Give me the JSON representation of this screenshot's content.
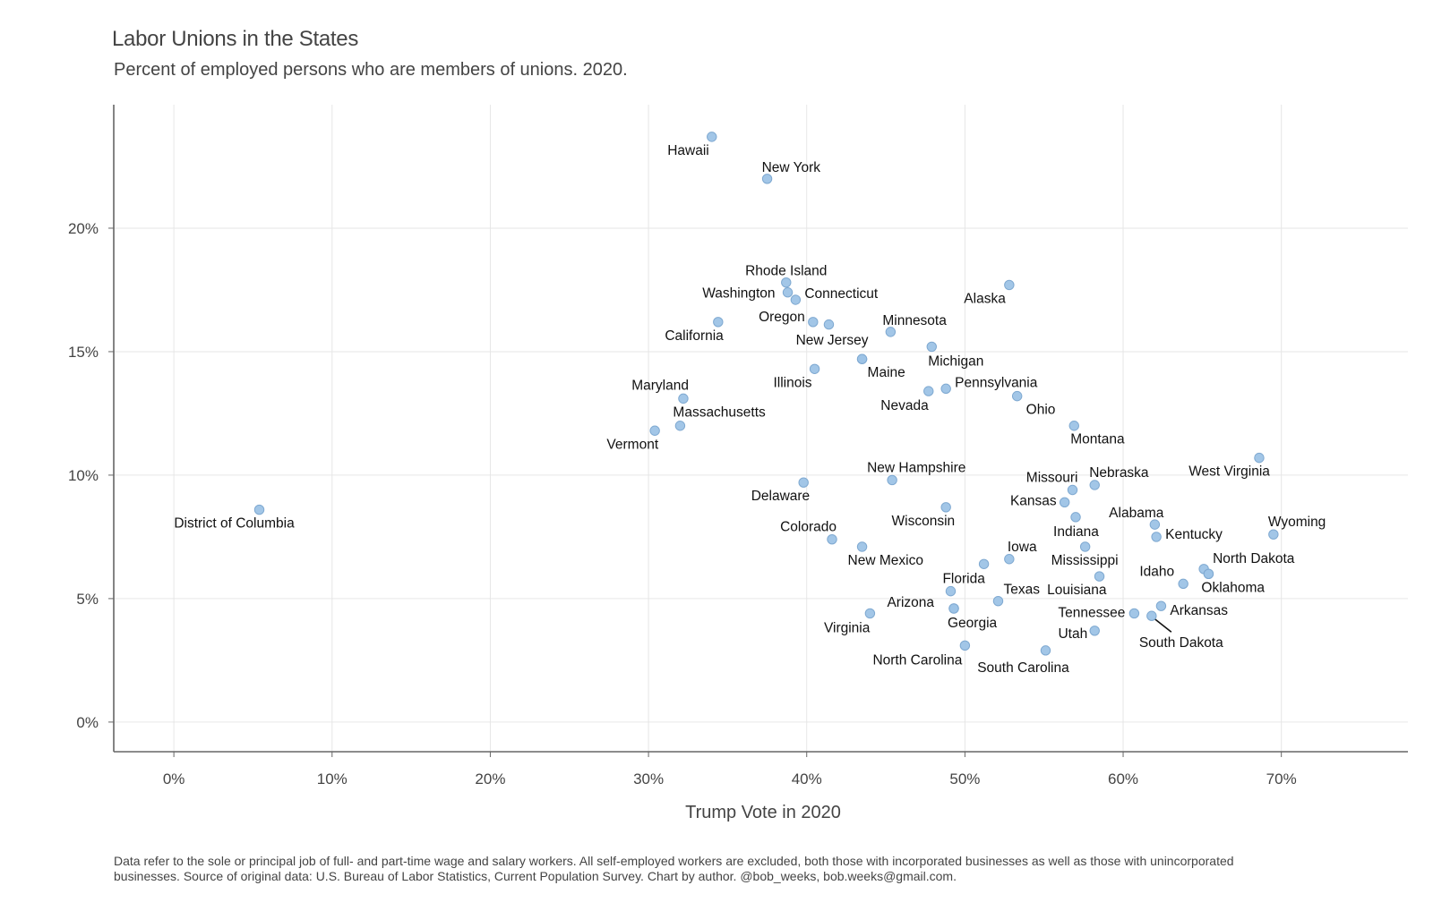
{
  "chart_data": {
    "type": "scatter",
    "title": "Labor Unions in the States",
    "subtitle": "Percent of employed persons who are members of unions. 2020.",
    "xlabel": "Trump Vote in 2020",
    "ylabel": "",
    "caption": "Data refer to the sole or principal job of full- and part-time wage and salary workers. All self-employed workers are excluded, both those with incorporated businesses as well as those with unincorporated businesses. Source of original data: U.S. Bureau of Labor Statistics, Current Population Survey. Chart by author. @bob_weeks, bob.weeks@gmail.com.",
    "xlim": [
      -3.8,
      78
    ],
    "ylim": [
      -1.2,
      25
    ],
    "x_ticks": [
      0,
      10,
      20,
      30,
      40,
      50,
      60,
      70
    ],
    "x_tick_labels": [
      "0%",
      "10%",
      "20%",
      "30%",
      "40%",
      "50%",
      "60%",
      "70%"
    ],
    "y_ticks": [
      0,
      5,
      10,
      15,
      20
    ],
    "y_tick_labels": [
      "0%",
      "5%",
      "10%",
      "15%",
      "20%"
    ],
    "grid": true,
    "point_color": "#9dc3e6",
    "point_stroke": "#7fa9d1",
    "points": [
      {
        "label": "Hawaii",
        "x": 34.0,
        "y": 23.7,
        "anchor": "end",
        "dx": -3,
        "dy": 20
      },
      {
        "label": "New York",
        "x": 37.5,
        "y": 22.0,
        "anchor": "start",
        "dx": -6,
        "dy": -8
      },
      {
        "label": "Rhode Island",
        "x": 38.7,
        "y": 17.8,
        "anchor": "middle",
        "dx": 0,
        "dy": -8
      },
      {
        "label": "Washington",
        "x": 38.8,
        "y": 17.4,
        "anchor": "end",
        "dx": -14,
        "dy": 6
      },
      {
        "label": "Connecticut",
        "x": 39.3,
        "y": 17.1,
        "anchor": "start",
        "dx": 10,
        "dy": -2
      },
      {
        "label": "Alaska",
        "x": 52.8,
        "y": 17.7,
        "anchor": "end",
        "dx": -4,
        "dy": 20
      },
      {
        "label": "California",
        "x": 34.4,
        "y": 16.2,
        "anchor": "end",
        "dx": 6,
        "dy": 20
      },
      {
        "label": "Oregon",
        "x": 40.4,
        "y": 16.2,
        "anchor": "end",
        "dx": -9,
        "dy": -1
      },
      {
        "label": "",
        "x": 41.4,
        "y": 16.1,
        "anchor": "start",
        "dx": 0,
        "dy": 0
      },
      {
        "label": "Minnesota",
        "x": 45.3,
        "y": 15.8,
        "anchor": "start",
        "dx": -9,
        "dy": -8
      },
      {
        "label": "New Jersey",
        "x": 43.5,
        "y": 14.7,
        "anchor": "end",
        "dx": 7,
        "dy": -16
      },
      {
        "label": "Michigan",
        "x": 47.9,
        "y": 15.2,
        "anchor": "start",
        "dx": -4,
        "dy": 21
      },
      {
        "label": "Maine",
        "x": 43.5,
        "y": 14.7,
        "anchor": "start",
        "dx": 6,
        "dy": 20
      },
      {
        "label": "Illinois",
        "x": 40.5,
        "y": 14.3,
        "anchor": "end",
        "dx": -3,
        "dy": 20
      },
      {
        "label": "Pennsylvania",
        "x": 48.8,
        "y": 13.5,
        "anchor": "start",
        "dx": 10,
        "dy": -2
      },
      {
        "label": "Nevada",
        "x": 47.7,
        "y": 13.4,
        "anchor": "end",
        "dx": 0,
        "dy": 21
      },
      {
        "label": "Ohio",
        "x": 53.3,
        "y": 13.2,
        "anchor": "start",
        "dx": 10,
        "dy": 20
      },
      {
        "label": "Maryland",
        "x": 32.2,
        "y": 13.1,
        "anchor": "end",
        "dx": 6,
        "dy": -10
      },
      {
        "label": "Massachusetts",
        "x": 32.0,
        "y": 12.0,
        "anchor": "start",
        "dx": -8,
        "dy": -10
      },
      {
        "label": "Vermont",
        "x": 30.4,
        "y": 11.8,
        "anchor": "end",
        "dx": 4,
        "dy": 20
      },
      {
        "label": "Montana",
        "x": 56.9,
        "y": 12.0,
        "anchor": "start",
        "dx": -4,
        "dy": 20
      },
      {
        "label": "West Virginia",
        "x": 68.6,
        "y": 10.7,
        "anchor": "end",
        "dx": 12,
        "dy": 20
      },
      {
        "label": "New Hampshire",
        "x": 45.4,
        "y": 9.8,
        "anchor": "start",
        "dx": -28,
        "dy": -9
      },
      {
        "label": "Delaware",
        "x": 39.8,
        "y": 9.7,
        "anchor": "end",
        "dx": 7,
        "dy": 20
      },
      {
        "label": "Missouri",
        "x": 56.8,
        "y": 9.4,
        "anchor": "end",
        "dx": 6,
        "dy": -9
      },
      {
        "label": "Nebraska",
        "x": 58.2,
        "y": 9.6,
        "anchor": "start",
        "dx": -6,
        "dy": -9
      },
      {
        "label": "District of Columbia",
        "x": 5.4,
        "y": 8.6,
        "anchor": "middle",
        "dx": -28,
        "dy": 20
      },
      {
        "label": "Wisconsin",
        "x": 48.8,
        "y": 8.7,
        "anchor": "end",
        "dx": 10,
        "dy": 20
      },
      {
        "label": "Kansas",
        "x": 56.3,
        "y": 8.9,
        "anchor": "end",
        "dx": -9,
        "dy": 3
      },
      {
        "label": "Indiana",
        "x": 57.0,
        "y": 8.3,
        "anchor": "start",
        "dx": -25,
        "dy": 21
      },
      {
        "label": "Alabama",
        "x": 62.0,
        "y": 8.0,
        "anchor": "end",
        "dx": 10,
        "dy": -8
      },
      {
        "label": "Kentucky",
        "x": 62.1,
        "y": 7.5,
        "anchor": "start",
        "dx": 10,
        "dy": 2
      },
      {
        "label": "Wyoming",
        "x": 69.5,
        "y": 7.6,
        "anchor": "start",
        "dx": -6,
        "dy": -9
      },
      {
        "label": "Colorado",
        "x": 41.6,
        "y": 7.4,
        "anchor": "end",
        "dx": 5,
        "dy": -9
      },
      {
        "label": "New Mexico",
        "x": 43.5,
        "y": 7.1,
        "anchor": "start",
        "dx": -16,
        "dy": 20
      },
      {
        "label": "Iowa",
        "x": 52.8,
        "y": 6.6,
        "anchor": "start",
        "dx": -2,
        "dy": -9
      },
      {
        "label": "",
        "x": 51.2,
        "y": 6.4,
        "anchor": "start",
        "dx": 0,
        "dy": 0
      },
      {
        "label": "Mississippi",
        "x": 57.6,
        "y": 7.1,
        "anchor": "start",
        "dx": -38,
        "dy": 20
      },
      {
        "label": "North Dakota",
        "x": 65.1,
        "y": 6.2,
        "anchor": "start",
        "dx": 10,
        "dy": -7
      },
      {
        "label": "",
        "x": 65.4,
        "y": 6.0,
        "anchor": "start",
        "dx": 0,
        "dy": 0
      },
      {
        "label": "Idaho",
        "x": 63.8,
        "y": 5.6,
        "anchor": "end",
        "dx": -10,
        "dy": -9
      },
      {
        "label": "Oklahoma",
        "x": 65.4,
        "y": 6.0,
        "anchor": "start",
        "dx": -8,
        "dy": 20
      },
      {
        "label": "Louisiana",
        "x": 58.5,
        "y": 5.9,
        "anchor": "end",
        "dx": 8,
        "dy": 20
      },
      {
        "label": "Florida",
        "x": 49.1,
        "y": 5.3,
        "anchor": "start",
        "dx": -9,
        "dy": -9
      },
      {
        "label": "Texas",
        "x": 52.1,
        "y": 4.9,
        "anchor": "start",
        "dx": 6,
        "dy": -8
      },
      {
        "label": "Arizona",
        "x": 49.3,
        "y": 4.6,
        "anchor": "end",
        "dx": -22,
        "dy": -2
      },
      {
        "label": "Georgia",
        "x": 49.3,
        "y": 4.6,
        "anchor": "start",
        "dx": -7,
        "dy": 21
      },
      {
        "label": "Virginia",
        "x": 44.0,
        "y": 4.4,
        "anchor": "end",
        "dx": 0,
        "dy": 21
      },
      {
        "label": "Tennessee",
        "x": 60.7,
        "y": 4.4,
        "anchor": "end",
        "dx": -10,
        "dy": 4
      },
      {
        "label": "Arkansas",
        "x": 62.4,
        "y": 4.7,
        "anchor": "start",
        "dx": 10,
        "dy": 10
      },
      {
        "label": "South Dakota",
        "x": 61.8,
        "y": 4.3,
        "anchor": "start",
        "dx": -14,
        "dy": 35,
        "leader": true
      },
      {
        "label": "Utah",
        "x": 58.2,
        "y": 3.7,
        "anchor": "end",
        "dx": -8,
        "dy": 8
      },
      {
        "label": "North Carolina",
        "x": 50.0,
        "y": 3.1,
        "anchor": "end",
        "dx": -3,
        "dy": 21
      },
      {
        "label": "South Carolina",
        "x": 55.1,
        "y": 2.9,
        "anchor": "middle",
        "dx": -25,
        "dy": 24
      }
    ]
  }
}
